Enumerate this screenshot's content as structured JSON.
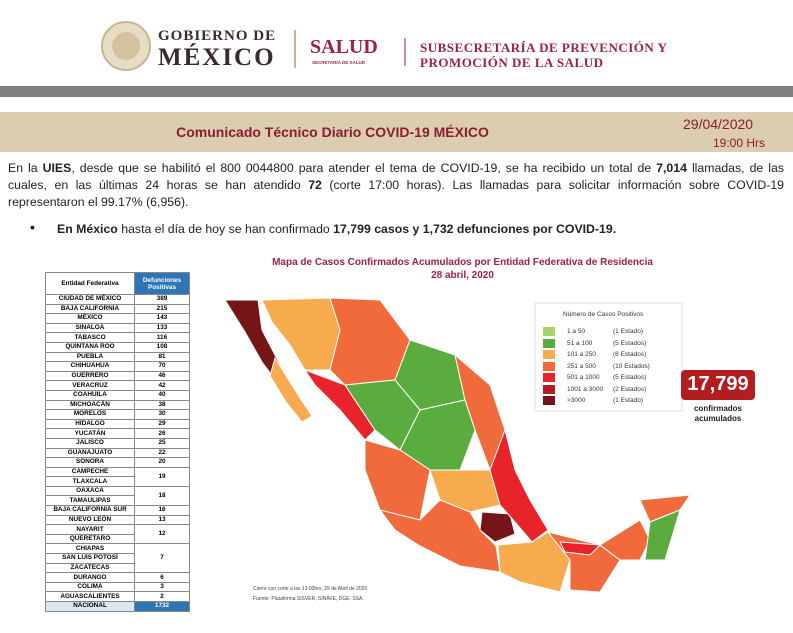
{
  "header": {
    "gov_line1": "GOBIERNO DE",
    "gov_line2": "MÉXICO",
    "salud": "SALUD",
    "salud_sub": "SECRETARÍA DE SALUD",
    "sub_line1": "SUBSECRETARÍA DE PREVENCIÓN Y",
    "sub_line2": "PROMOCIÓN DE LA SALUD"
  },
  "banner": {
    "title": "Comunicado Técnico Diario COVID-19 MÉXICO",
    "date": "29/04/2020",
    "time": "19:00 Hrs"
  },
  "paragraph": [
    {
      "text": "En la ",
      "bold": false
    },
    {
      "text": "UIES",
      "bold": true
    },
    {
      "text": ", desde que se habilitó el 800 0044800 para atender el tema de COVID-19, se ha recibido un total de ",
      "bold": false
    },
    {
      "text": "7,014",
      "bold": true
    },
    {
      "text": " llamadas, de las cuales, en las últimas 24 horas se han atendido ",
      "bold": false
    },
    {
      "text": "72",
      "bold": true
    },
    {
      "text": " (corte 17:00 horas).  Las llamadas para solicitar información sobre COVID-19 representaron el 99.17% (6,956).",
      "bold": false
    }
  ],
  "bullet": [
    {
      "text": "En México",
      "bold": true
    },
    {
      "text": " hasta el día de hoy se han confirmado ",
      "bold": false
    },
    {
      "text": "17,799 casos y 1,732 defunciones por COVID-19.",
      "bold": true
    }
  ],
  "table": {
    "headers": [
      "Entidad Federativa",
      "Defunciones Positivas"
    ],
    "rows": [
      {
        "states": [
          "CIUDAD DE MÉXICO"
        ],
        "value": 389
      },
      {
        "states": [
          "BAJA CALIFORNIA"
        ],
        "value": 215
      },
      {
        "states": [
          "MÉXICO"
        ],
        "value": 143
      },
      {
        "states": [
          "SINALOA"
        ],
        "value": 133
      },
      {
        "states": [
          "TABASCO"
        ],
        "value": 116
      },
      {
        "states": [
          "QUINTANA ROO"
        ],
        "value": 108
      },
      {
        "states": [
          "PUEBLA"
        ],
        "value": 81
      },
      {
        "states": [
          "CHIHUAHUA"
        ],
        "value": 70
      },
      {
        "states": [
          "GUERRERO"
        ],
        "value": 46
      },
      {
        "states": [
          "VERACRUZ"
        ],
        "value": 42
      },
      {
        "states": [
          "COAHUILA"
        ],
        "value": 40
      },
      {
        "states": [
          "MICHOACÁN"
        ],
        "value": 38
      },
      {
        "states": [
          "MORELOS"
        ],
        "value": 30
      },
      {
        "states": [
          "HIDALGO"
        ],
        "value": 29
      },
      {
        "states": [
          "YUCATÁN"
        ],
        "value": 26
      },
      {
        "states": [
          "JALISCO"
        ],
        "value": 25
      },
      {
        "states": [
          "GUANAJUATO"
        ],
        "value": 22
      },
      {
        "states": [
          "SONORA"
        ],
        "value": 20
      },
      {
        "states": [
          "CAMPECHE",
          "TLAXCALA"
        ],
        "value": 19
      },
      {
        "states": [
          "OAXACA",
          "TAMAULIPAS"
        ],
        "value": 18
      },
      {
        "states": [
          "BAJA CALIFORNIA SUR"
        ],
        "value": 16
      },
      {
        "states": [
          "NUEVO LEÓN"
        ],
        "value": 13
      },
      {
        "states": [
          "NAYARIT",
          "QUERETARO"
        ],
        "value": 12
      },
      {
        "states": [
          "CHIAPAS",
          "SAN LUIS POTOSÍ",
          "ZACATECAS"
        ],
        "value": 7
      },
      {
        "states": [
          "DURANGO"
        ],
        "value": 6
      },
      {
        "states": [
          "COLIMA"
        ],
        "value": 3
      },
      {
        "states": [
          "AGUASCALIENTES"
        ],
        "value": 2
      }
    ],
    "total": {
      "label": "NACIONAL",
      "value": 1732
    }
  },
  "map": {
    "title": "Mapa de Casos Confirmados Acumulados por Entidad Federativa de Residencia",
    "date": "28 abril, 2020",
    "legend_title": "Número de Casos Positivos",
    "legend": [
      {
        "range": "1 a 50",
        "count": "(1 Estado)",
        "color": "#a6d46c"
      },
      {
        "range": "51 a 100",
        "count": "(5 Estados)",
        "color": "#5aac3e"
      },
      {
        "range": "101 a 250",
        "count": "(8 Estados)",
        "color": "#f8ab4e"
      },
      {
        "range": "251 a 500",
        "count": "(10 Estados)",
        "color": "#f06a3b"
      },
      {
        "range": "501 a 1000",
        "count": "(5 Estados)",
        "color": "#e8232a"
      },
      {
        "range": "1001 a 3000",
        "count": "(2 Estados)",
        "color": "#b21d20"
      },
      {
        "range": ">3000",
        "count": "(1 Estado)",
        "color": "#761517"
      }
    ],
    "total": "17,799",
    "total_caption_1": "confirmados",
    "total_caption_2": "acumulados",
    "note": "Cierre con corte a las 13:00hrs, 29 de Abril de 2020",
    "source": "Fuente: Plataforma SISVER, SINAVE, DGE, SSA."
  }
}
